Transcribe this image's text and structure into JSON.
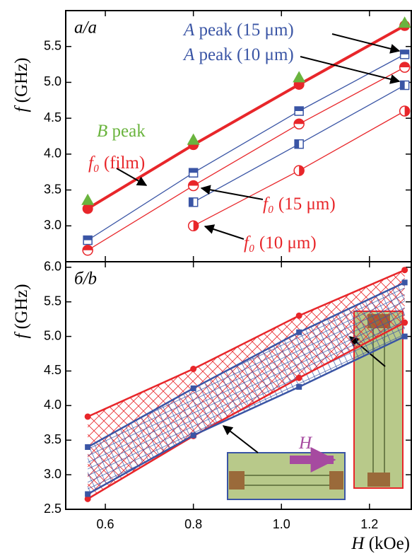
{
  "chart_data": [
    {
      "type": "line",
      "panel_label": "a/a",
      "ylabel": "f (GHz)",
      "x": [
        0.56,
        0.8,
        1.04,
        1.28
      ],
      "xlim": [
        0.51,
        1.295
      ],
      "xticks": [
        0.6,
        0.8,
        {
          "value": 1,
          "label": "1.0"
        },
        1.2
      ],
      "ylim": [
        2.5,
        6.0
      ],
      "yticks": [
        {
          "value": 3,
          "label": "3.0"
        },
        3.5,
        {
          "value": 4,
          "label": "4.0"
        },
        4.5,
        {
          "value": 5,
          "label": "5.0"
        },
        5.5
      ],
      "series": [
        {
          "name": "f₀ (film)",
          "color": "#e8262a",
          "marker": "circle-filled",
          "linewidth": 4,
          "values": [
            3.24,
            4.13,
            4.97,
            5.79
          ]
        },
        {
          "name": "B peak",
          "color": "#6ab43e",
          "marker": "triangle",
          "linewidth": 0,
          "values": [
            3.36,
            4.2,
            5.07,
            5.83
          ]
        },
        {
          "name": "A peak (15 μm)",
          "color": "#3a55a5",
          "marker": "square-top",
          "linewidth": 1.3,
          "values": [
            2.8,
            3.74,
            4.6,
            5.39
          ]
        },
        {
          "name": "A peak (10 μm)",
          "color": "#3a55a5",
          "marker": "square-left",
          "linewidth": 1.3,
          "values": [
            null,
            3.33,
            4.14,
            4.96
          ]
        },
        {
          "name": "f₀ (15 μm)",
          "color": "#e8262a",
          "marker": "circle-top",
          "linewidth": 1.3,
          "values": [
            2.66,
            3.56,
            4.42,
            5.21
          ]
        },
        {
          "name": "f₀ (10 μm)",
          "color": "#e8262a",
          "marker": "circle-right",
          "linewidth": 1.3,
          "values": [
            null,
            3.0,
            3.77,
            4.6
          ]
        }
      ]
    },
    {
      "type": "line",
      "panel_label": "б/b",
      "ylabel": "f (GHz)",
      "xlabel": "H (kOe)",
      "x": [
        0.56,
        0.8,
        1.04,
        1.28
      ],
      "xlim": [
        0.51,
        1.295
      ],
      "xticks": [
        0.6,
        0.8,
        {
          "value": 1,
          "label": "1.0"
        },
        1.2
      ],
      "ylim": [
        2.5,
        6.08
      ],
      "yticks": [
        2.5,
        {
          "value": 3,
          "label": "3.0"
        },
        3.5,
        {
          "value": 4,
          "label": "4.0"
        },
        4.5,
        {
          "value": 5,
          "label": "5.0"
        },
        5.5,
        {
          "value": 6,
          "label": "6.0"
        }
      ],
      "hatch": true,
      "annotations": [
        "H"
      ],
      "series": [
        {
          "color": "#e8262a",
          "marker": "dot",
          "linewidth": 2.5,
          "values": [
            3.84,
            4.53,
            5.3,
            5.96
          ]
        },
        {
          "color": "#e8262a",
          "marker": "dot",
          "linewidth": 2.5,
          "values": [
            2.65,
            3.56,
            4.4,
            5.2
          ]
        },
        {
          "color": "#3a55a5",
          "marker": "small-square",
          "linewidth": 2.5,
          "values": [
            3.4,
            4.25,
            5.06,
            5.78
          ]
        },
        {
          "color": "#3a55a5",
          "marker": "small-square",
          "linewidth": 2.5,
          "values": [
            2.72,
            3.57,
            4.27,
            5.0
          ]
        }
      ]
    }
  ]
}
